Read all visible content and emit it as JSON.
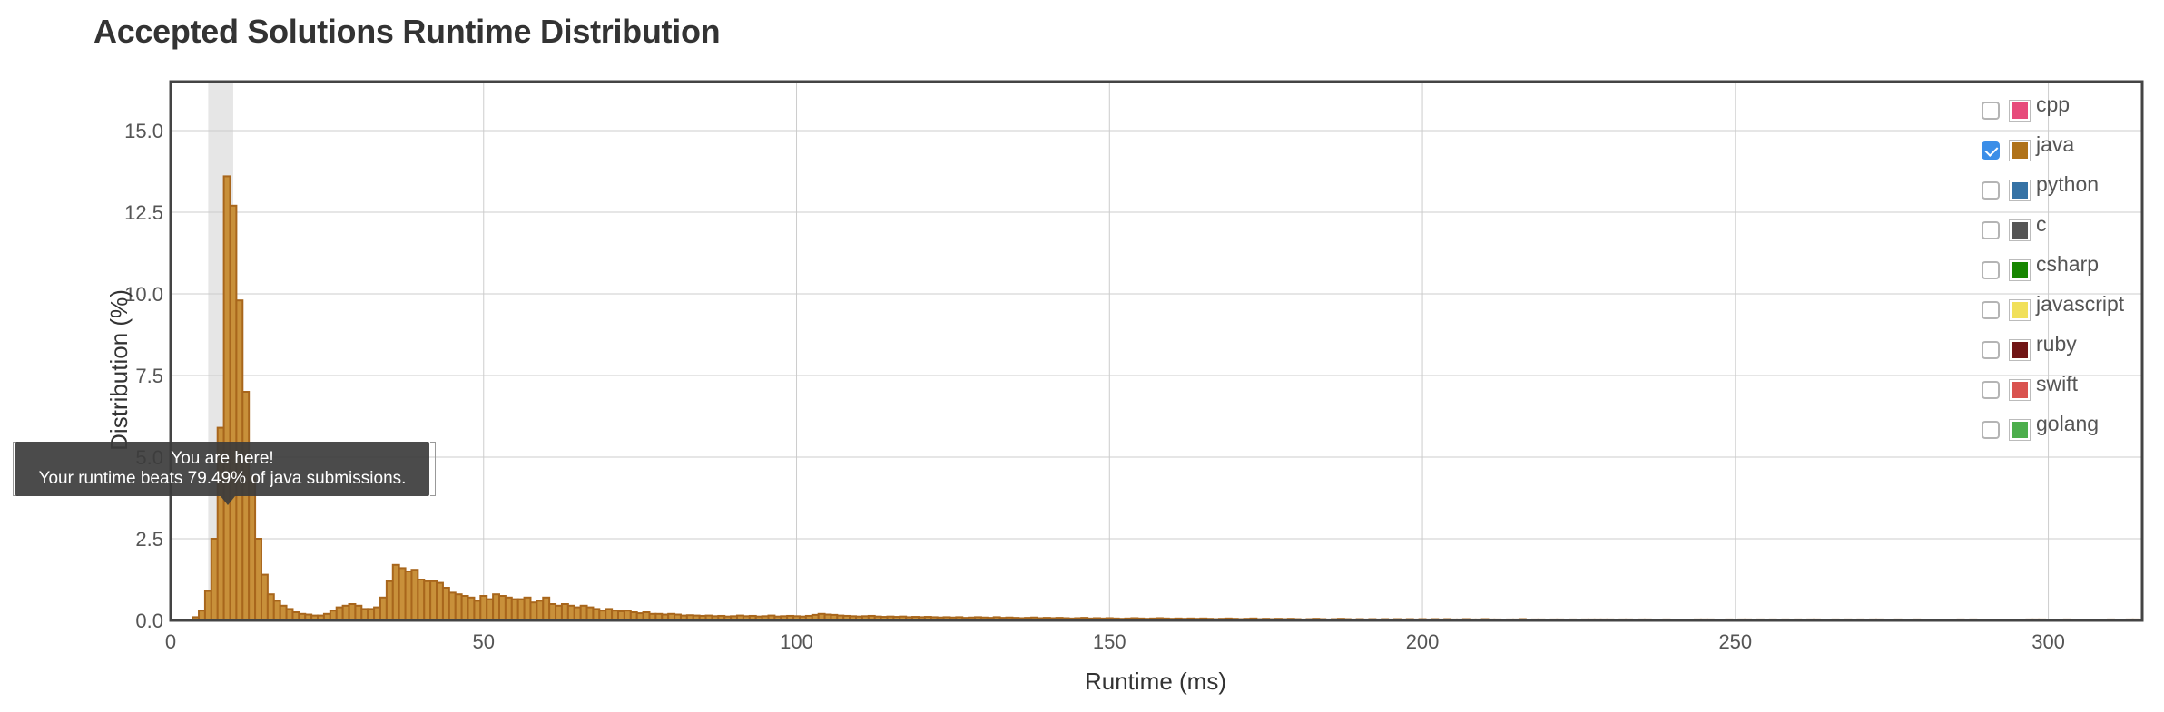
{
  "page": {
    "title": "Accepted Solutions Runtime Distribution"
  },
  "colors": {
    "bar_fill": "#c8903a",
    "bar_stroke": "#a8661c",
    "grid": "#cccccc",
    "frame": "#444444",
    "highlight": "#e6e6e6"
  },
  "legend": {
    "items": [
      {
        "label": "cpp",
        "color": "#e74c7c",
        "checked": false,
        "icon": "cpp-swatch"
      },
      {
        "label": "java",
        "color": "#b07219",
        "checked": true,
        "icon": "java-swatch"
      },
      {
        "label": "python",
        "color": "#3572a5",
        "checked": false,
        "icon": "python-swatch"
      },
      {
        "label": "c",
        "color": "#555555",
        "checked": false,
        "icon": "c-swatch"
      },
      {
        "label": "csharp",
        "color": "#178600",
        "checked": false,
        "icon": "csharp-swatch"
      },
      {
        "label": "javascript",
        "color": "#f1e05a",
        "checked": false,
        "icon": "javascript-swatch"
      },
      {
        "label": "ruby",
        "color": "#701516",
        "checked": false,
        "icon": "ruby-swatch"
      },
      {
        "label": "swift",
        "color": "#d9534f",
        "checked": false,
        "icon": "swift-swatch"
      },
      {
        "label": "golang",
        "color": "#4cae4c",
        "checked": false,
        "icon": "golang-swatch"
      }
    ]
  },
  "tooltip": {
    "line1": "You are here!",
    "line2": "Your runtime beats 79.49% of java submissions."
  },
  "chart_data": {
    "type": "bar",
    "title": "Accepted Solutions Runtime Distribution",
    "xlabel": "Runtime (ms)",
    "ylabel": "Distribution (%)",
    "xlim": [
      0,
      315
    ],
    "ylim": [
      0,
      16.5
    ],
    "x_ticks": [
      0,
      50,
      100,
      150,
      200,
      250,
      300
    ],
    "y_ticks": [
      "0.0",
      "2.5",
      "5.0",
      "7.5",
      "10.0",
      "12.5",
      "15.0"
    ],
    "bin_width": 1,
    "highlight_range_ms": [
      6,
      10
    ],
    "grid": true,
    "legend_position": "top-right",
    "series": [
      {
        "name": "java",
        "bins": [
          [
            4,
            0.1
          ],
          [
            5,
            0.3
          ],
          [
            6,
            0.9
          ],
          [
            7,
            2.5
          ],
          [
            8,
            5.9
          ],
          [
            9,
            13.6
          ],
          [
            10,
            12.7
          ],
          [
            11,
            9.8
          ],
          [
            12,
            7.0
          ],
          [
            13,
            4.4
          ],
          [
            14,
            2.5
          ],
          [
            15,
            1.4
          ],
          [
            16,
            0.8
          ],
          [
            17,
            0.6
          ],
          [
            18,
            0.45
          ],
          [
            19,
            0.35
          ],
          [
            20,
            0.25
          ],
          [
            21,
            0.2
          ],
          [
            22,
            0.18
          ],
          [
            23,
            0.15
          ],
          [
            24,
            0.15
          ],
          [
            25,
            0.2
          ],
          [
            26,
            0.3
          ],
          [
            27,
            0.4
          ],
          [
            28,
            0.45
          ],
          [
            29,
            0.5
          ],
          [
            30,
            0.45
          ],
          [
            31,
            0.35
          ],
          [
            32,
            0.35
          ],
          [
            33,
            0.4
          ],
          [
            34,
            0.7
          ],
          [
            35,
            1.2
          ],
          [
            36,
            1.7
          ],
          [
            37,
            1.6
          ],
          [
            38,
            1.5
          ],
          [
            39,
            1.55
          ],
          [
            40,
            1.25
          ],
          [
            41,
            1.2
          ],
          [
            42,
            1.2
          ],
          [
            43,
            1.15
          ],
          [
            44,
            1.0
          ],
          [
            45,
            0.85
          ],
          [
            46,
            0.8
          ],
          [
            47,
            0.75
          ],
          [
            48,
            0.7
          ],
          [
            49,
            0.6
          ],
          [
            50,
            0.75
          ],
          [
            51,
            0.65
          ],
          [
            52,
            0.8
          ],
          [
            53,
            0.75
          ],
          [
            54,
            0.7
          ],
          [
            55,
            0.65
          ],
          [
            56,
            0.65
          ],
          [
            57,
            0.7
          ],
          [
            58,
            0.55
          ],
          [
            59,
            0.6
          ],
          [
            60,
            0.7
          ],
          [
            61,
            0.5
          ],
          [
            62,
            0.45
          ],
          [
            63,
            0.5
          ],
          [
            64,
            0.45
          ],
          [
            65,
            0.4
          ],
          [
            66,
            0.45
          ],
          [
            67,
            0.4
          ],
          [
            68,
            0.35
          ],
          [
            69,
            0.3
          ],
          [
            70,
            0.35
          ],
          [
            71,
            0.3
          ],
          [
            72,
            0.28
          ],
          [
            73,
            0.3
          ],
          [
            74,
            0.25
          ],
          [
            75,
            0.22
          ],
          [
            76,
            0.25
          ],
          [
            77,
            0.2
          ],
          [
            78,
            0.2
          ],
          [
            79,
            0.18
          ],
          [
            80,
            0.2
          ],
          [
            81,
            0.18
          ],
          [
            82,
            0.15
          ],
          [
            83,
            0.16
          ],
          [
            84,
            0.15
          ],
          [
            85,
            0.14
          ],
          [
            86,
            0.15
          ],
          [
            87,
            0.13
          ],
          [
            88,
            0.14
          ],
          [
            89,
            0.12
          ],
          [
            90,
            0.13
          ],
          [
            91,
            0.15
          ],
          [
            92,
            0.13
          ],
          [
            93,
            0.14
          ],
          [
            94,
            0.12
          ],
          [
            95,
            0.13
          ],
          [
            96,
            0.15
          ],
          [
            97,
            0.12
          ],
          [
            98,
            0.13
          ],
          [
            99,
            0.14
          ],
          [
            100,
            0.13
          ],
          [
            101,
            0.12
          ],
          [
            102,
            0.14
          ],
          [
            103,
            0.17
          ],
          [
            104,
            0.2
          ],
          [
            105,
            0.18
          ],
          [
            106,
            0.17
          ],
          [
            107,
            0.15
          ],
          [
            108,
            0.14
          ],
          [
            109,
            0.13
          ],
          [
            110,
            0.12
          ],
          [
            111,
            0.13
          ],
          [
            112,
            0.14
          ],
          [
            113,
            0.12
          ],
          [
            114,
            0.11
          ],
          [
            115,
            0.12
          ],
          [
            116,
            0.11
          ],
          [
            117,
            0.12
          ],
          [
            118,
            0.1
          ],
          [
            119,
            0.11
          ],
          [
            120,
            0.1
          ],
          [
            121,
            0.11
          ],
          [
            122,
            0.1
          ],
          [
            123,
            0.09
          ],
          [
            124,
            0.1
          ],
          [
            125,
            0.09
          ],
          [
            126,
            0.1
          ],
          [
            127,
            0.08
          ],
          [
            128,
            0.09
          ],
          [
            129,
            0.1
          ],
          [
            130,
            0.09
          ],
          [
            131,
            0.08
          ],
          [
            132,
            0.1
          ],
          [
            133,
            0.08
          ],
          [
            134,
            0.09
          ],
          [
            135,
            0.08
          ],
          [
            136,
            0.07
          ],
          [
            137,
            0.08
          ],
          [
            138,
            0.09
          ],
          [
            139,
            0.07
          ],
          [
            140,
            0.08
          ],
          [
            141,
            0.07
          ],
          [
            142,
            0.08
          ],
          [
            143,
            0.07
          ],
          [
            144,
            0.06
          ],
          [
            145,
            0.07
          ],
          [
            146,
            0.08
          ],
          [
            147,
            0.06
          ],
          [
            148,
            0.07
          ],
          [
            149,
            0.06
          ],
          [
            150,
            0.07
          ],
          [
            151,
            0.06
          ],
          [
            152,
            0.05
          ],
          [
            153,
            0.06
          ],
          [
            154,
            0.07
          ],
          [
            155,
            0.06
          ],
          [
            156,
            0.05
          ],
          [
            157,
            0.06
          ],
          [
            158,
            0.07
          ],
          [
            159,
            0.06
          ],
          [
            160,
            0.05
          ],
          [
            161,
            0.06
          ],
          [
            162,
            0.05
          ],
          [
            163,
            0.06
          ],
          [
            164,
            0.05
          ],
          [
            165,
            0.06
          ],
          [
            166,
            0.05
          ],
          [
            167,
            0.04
          ],
          [
            168,
            0.05
          ],
          [
            169,
            0.06
          ],
          [
            170,
            0.05
          ],
          [
            171,
            0.04
          ],
          [
            172,
            0.05
          ],
          [
            173,
            0.06
          ],
          [
            174,
            0.04
          ],
          [
            175,
            0.05
          ],
          [
            176,
            0.04
          ],
          [
            177,
            0.05
          ],
          [
            178,
            0.04
          ],
          [
            179,
            0.05
          ],
          [
            180,
            0.04
          ],
          [
            181,
            0.03
          ],
          [
            182,
            0.04
          ],
          [
            183,
            0.05
          ],
          [
            184,
            0.04
          ],
          [
            185,
            0.03
          ],
          [
            186,
            0.04
          ],
          [
            187,
            0.05
          ],
          [
            188,
            0.04
          ],
          [
            189,
            0.03
          ],
          [
            190,
            0.04
          ],
          [
            191,
            0.03
          ],
          [
            192,
            0.04
          ],
          [
            193,
            0.03
          ],
          [
            194,
            0.04
          ],
          [
            195,
            0.03
          ],
          [
            196,
            0.04
          ],
          [
            197,
            0.03
          ],
          [
            198,
            0.04
          ],
          [
            199,
            0.03
          ],
          [
            200,
            0.04
          ],
          [
            201,
            0.03
          ],
          [
            202,
            0.04
          ],
          [
            203,
            0.03
          ],
          [
            204,
            0.04
          ],
          [
            205,
            0.03
          ],
          [
            206,
            0.03
          ],
          [
            207,
            0.04
          ],
          [
            208,
            0.03
          ],
          [
            209,
            0.03
          ],
          [
            210,
            0.04
          ],
          [
            211,
            0.03
          ],
          [
            212,
            0.03
          ],
          [
            214,
            0.03
          ],
          [
            215,
            0.03
          ],
          [
            216,
            0.04
          ],
          [
            218,
            0.03
          ],
          [
            219,
            0.03
          ],
          [
            221,
            0.03
          ],
          [
            222,
            0.03
          ],
          [
            224,
            0.03
          ],
          [
            226,
            0.03
          ],
          [
            227,
            0.03
          ],
          [
            228,
            0.03
          ],
          [
            229,
            0.03
          ],
          [
            230,
            0.03
          ],
          [
            232,
            0.03
          ],
          [
            233,
            0.03
          ],
          [
            235,
            0.03
          ],
          [
            236,
            0.03
          ],
          [
            239,
            0.03
          ],
          [
            244,
            0.03
          ],
          [
            245,
            0.03
          ],
          [
            246,
            0.03
          ],
          [
            249,
            0.03
          ],
          [
            251,
            0.03
          ],
          [
            252,
            0.03
          ],
          [
            254,
            0.03
          ],
          [
            256,
            0.03
          ],
          [
            258,
            0.03
          ],
          [
            260,
            0.03
          ],
          [
            262,
            0.03
          ],
          [
            263,
            0.03
          ],
          [
            266,
            0.03
          ],
          [
            268,
            0.03
          ],
          [
            270,
            0.03
          ],
          [
            272,
            0.03
          ],
          [
            273,
            0.03
          ],
          [
            276,
            0.03
          ],
          [
            279,
            0.03
          ],
          [
            286,
            0.03
          ],
          [
            288,
            0.03
          ],
          [
            297,
            0.03
          ],
          [
            298,
            0.03
          ],
          [
            299,
            0.03
          ],
          [
            303,
            0.03
          ],
          [
            310,
            0.03
          ],
          [
            313,
            0.03
          ],
          [
            314,
            0.03
          ]
        ]
      }
    ]
  }
}
